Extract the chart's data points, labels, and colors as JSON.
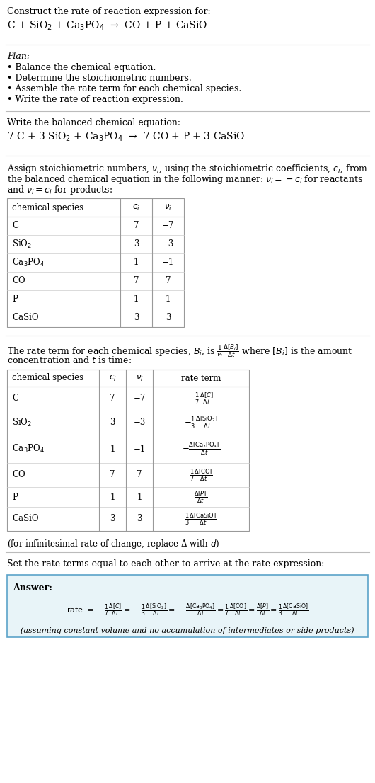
{
  "bg_color": "#ffffff",
  "text_color": "#000000",
  "title_line1": "Construct the rate of reaction expression for:",
  "reaction_unbalanced": "C + SiO$_2$ + Ca$_3$PO$_4$  →  CO + P + CaSiO",
  "plan_title": "Plan:",
  "plan_items": [
    "• Balance the chemical equation.",
    "• Determine the stoichiometric numbers.",
    "• Assemble the rate term for each chemical species.",
    "• Write the rate of reaction expression."
  ],
  "balanced_label": "Write the balanced chemical equation:",
  "reaction_balanced": "7 C + 3 SiO$_2$ + Ca$_3$PO$_4$  →  7 CO + P + 3 CaSiO",
  "assign_text1": "Assign stoichiometric numbers, $\\nu_i$, using the stoichiometric coefficients, $c_i$, from",
  "assign_text2": "the balanced chemical equation in the following manner: $\\nu_i = -c_i$ for reactants",
  "assign_text3": "and $\\nu_i = c_i$ for products:",
  "table1_headers": [
    "chemical species",
    "$c_i$",
    "$\\nu_i$"
  ],
  "table1_rows": [
    [
      "C",
      "7",
      "−7"
    ],
    [
      "SiO$_2$",
      "3",
      "−3"
    ],
    [
      "Ca$_3$PO$_4$",
      "1",
      "−1"
    ],
    [
      "CO",
      "7",
      "7"
    ],
    [
      "P",
      "1",
      "1"
    ],
    [
      "CaSiO",
      "3",
      "3"
    ]
  ],
  "rate_text1": "The rate term for each chemical species, $B_i$, is $\\frac{1}{\\nu_i}\\frac{\\Delta[B_i]}{\\Delta t}$ where $[B_i]$ is the amount",
  "rate_text2": "concentration and $t$ is time:",
  "table2_headers": [
    "chemical species",
    "$c_i$",
    "$\\nu_i$",
    "rate term"
  ],
  "table2_rows": [
    [
      "C",
      "7",
      "−7",
      "$-\\frac{1}{7}\\frac{\\Delta[C]}{\\Delta t}$"
    ],
    [
      "SiO$_2$",
      "3",
      "−3",
      "$-\\frac{1}{3}\\frac{\\Delta[\\mathrm{SiO}_2]}{\\Delta t}$"
    ],
    [
      "Ca$_3$PO$_4$",
      "1",
      "−1",
      "$-\\frac{\\Delta[\\mathrm{Ca}_3\\mathrm{PO}_4]}{\\Delta t}$"
    ],
    [
      "CO",
      "7",
      "7",
      "$\\frac{1}{7}\\frac{\\Delta[\\mathrm{CO}]}{\\Delta t}$"
    ],
    [
      "P",
      "1",
      "1",
      "$\\frac{\\Delta[P]}{\\Delta t}$"
    ],
    [
      "CaSiO",
      "3",
      "3",
      "$\\frac{1}{3}\\frac{\\Delta[\\mathrm{CaSiO}]}{\\Delta t}$"
    ]
  ],
  "infinitesimal_note": "(for infinitesimal rate of change, replace Δ with $d$)",
  "set_rate_text": "Set the rate terms equal to each other to arrive at the rate expression:",
  "answer_label": "Answer:",
  "answer_box_color": "#e8f4f8",
  "answer_box_border": "#5ba3c9",
  "rate_expression": "rate $= -\\frac{1}{7}\\frac{\\Delta[C]}{\\Delta t} = -\\frac{1}{3}\\frac{\\Delta[\\mathrm{SiO}_2]}{\\Delta t} = -\\frac{\\Delta[\\mathrm{Ca}_3\\mathrm{PO}_4]}{\\Delta t} = \\frac{1}{7}\\frac{\\Delta[\\mathrm{CO}]}{\\Delta t} = \\frac{\\Delta[P]}{\\Delta t} = \\frac{1}{3}\\frac{\\Delta[\\mathrm{CaSiO}]}{\\Delta t}$",
  "assuming_note": "(assuming constant volume and no accumulation of intermediates or side products)"
}
